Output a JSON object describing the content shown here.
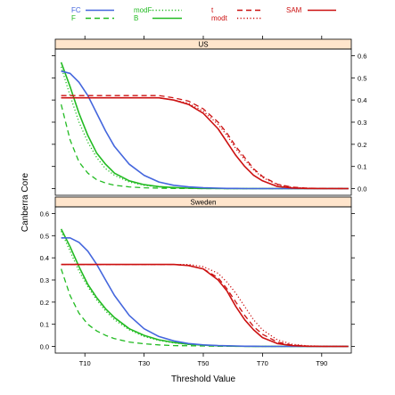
{
  "chart_data": {
    "type": "line",
    "xlabel": "Threshold Value",
    "ylabel": "Canberra Core",
    "xlim": [
      0,
      100
    ],
    "ylim": [
      -0.03,
      0.63
    ],
    "x_ticks": [
      {
        "value": 10,
        "label": "T10"
      },
      {
        "value": 30,
        "label": "T30"
      },
      {
        "value": 50,
        "label": "T50"
      },
      {
        "value": 70,
        "label": "T70"
      },
      {
        "value": 90,
        "label": "T90"
      }
    ],
    "y_ticks": [
      0.0,
      0.1,
      0.2,
      0.3,
      0.4,
      0.5,
      0.6
    ],
    "y_tick_labels": [
      "0.0",
      "0.1",
      "0.2",
      "0.3",
      "0.4",
      "0.5",
      "0.6"
    ],
    "legend_position": "top",
    "legend": [
      {
        "name": "FC",
        "color": "#4466dd",
        "dash": "solid"
      },
      {
        "name": "F",
        "color": "#22bb22",
        "dash": "dashed"
      },
      {
        "name": "modF",
        "color": "#22bb22",
        "dash": "dotted"
      },
      {
        "name": "B",
        "color": "#22bb22",
        "dash": "solid"
      },
      {
        "name": "t",
        "color": "#cc1111",
        "dash": "dashed"
      },
      {
        "name": "modt",
        "color": "#cc1111",
        "dash": "dotted"
      },
      {
        "name": "SAM",
        "color": "#cc1111",
        "dash": "solid"
      }
    ],
    "x": [
      2,
      5,
      8,
      11,
      14,
      17,
      20,
      25,
      30,
      35,
      40,
      45,
      50,
      55,
      58,
      61,
      64,
      67,
      70,
      75,
      80,
      85,
      90,
      99
    ],
    "panels": [
      {
        "strip": "US",
        "series": [
          {
            "name": "FC",
            "values": [
              0.53,
              0.52,
              0.48,
              0.42,
              0.34,
              0.26,
              0.19,
              0.11,
              0.06,
              0.03,
              0.015,
              0.008,
              0.004,
              0.002,
              0.001,
              0.001,
              0.0,
              0.0,
              0.0,
              0.0,
              0.0,
              0.0,
              0.0,
              0.0
            ]
          },
          {
            "name": "F",
            "values": [
              0.38,
              0.22,
              0.12,
              0.07,
              0.04,
              0.025,
              0.015,
              0.008,
              0.004,
              0.002,
              0.001,
              0.001,
              0.0,
              0.0,
              0.0,
              0.0,
              0.0,
              0.0,
              0.0,
              0.0,
              0.0,
              0.0,
              0.0,
              0.0
            ]
          },
          {
            "name": "modF",
            "values": [
              0.55,
              0.42,
              0.3,
              0.21,
              0.14,
              0.09,
              0.06,
              0.03,
              0.015,
              0.008,
              0.004,
              0.002,
              0.001,
              0.001,
              0.0,
              0.0,
              0.0,
              0.0,
              0.0,
              0.0,
              0.0,
              0.0,
              0.0,
              0.0
            ]
          },
          {
            "name": "B",
            "values": [
              0.57,
              0.46,
              0.34,
              0.24,
              0.16,
              0.11,
              0.07,
              0.035,
              0.018,
              0.009,
              0.005,
              0.002,
              0.001,
              0.001,
              0.0,
              0.0,
              0.0,
              0.0,
              0.0,
              0.0,
              0.0,
              0.0,
              0.0,
              0.0
            ]
          },
          {
            "name": "t",
            "values": [
              0.42,
              0.42,
              0.42,
              0.42,
              0.42,
              0.42,
              0.42,
              0.42,
              0.42,
              0.42,
              0.41,
              0.395,
              0.36,
              0.3,
              0.25,
              0.19,
              0.14,
              0.09,
              0.055,
              0.02,
              0.007,
              0.002,
              0.001,
              0.0
            ]
          },
          {
            "name": "modt",
            "values": [
              0.41,
              0.41,
              0.41,
              0.41,
              0.41,
              0.41,
              0.41,
              0.41,
              0.41,
              0.41,
              0.4,
              0.385,
              0.35,
              0.29,
              0.24,
              0.18,
              0.13,
              0.085,
              0.05,
              0.018,
              0.006,
              0.002,
              0.001,
              0.0
            ]
          },
          {
            "name": "SAM",
            "values": [
              0.41,
              0.41,
              0.41,
              0.41,
              0.41,
              0.41,
              0.41,
              0.41,
              0.41,
              0.41,
              0.4,
              0.38,
              0.34,
              0.27,
              0.21,
              0.15,
              0.1,
              0.06,
              0.035,
              0.01,
              0.003,
              0.001,
              0.0,
              0.0
            ]
          }
        ]
      },
      {
        "strip": "Sweden",
        "series": [
          {
            "name": "FC",
            "values": [
              0.49,
              0.49,
              0.47,
              0.43,
              0.37,
              0.3,
              0.23,
              0.14,
              0.08,
              0.045,
              0.025,
              0.013,
              0.007,
              0.004,
              0.003,
              0.002,
              0.001,
              0.001,
              0.0,
              0.0,
              0.0,
              0.0,
              0.0,
              0.0
            ]
          },
          {
            "name": "F",
            "values": [
              0.35,
              0.23,
              0.15,
              0.1,
              0.07,
              0.05,
              0.035,
              0.02,
              0.012,
              0.007,
              0.004,
              0.003,
              0.002,
              0.001,
              0.001,
              0.001,
              0.0,
              0.0,
              0.0,
              0.0,
              0.0,
              0.0,
              0.0,
              0.0
            ]
          },
          {
            "name": "modF",
            "values": [
              0.52,
              0.43,
              0.34,
              0.27,
              0.21,
              0.16,
              0.12,
              0.075,
              0.045,
              0.027,
              0.016,
              0.009,
              0.005,
              0.003,
              0.002,
              0.001,
              0.001,
              0.0,
              0.0,
              0.0,
              0.0,
              0.0,
              0.0,
              0.0
            ]
          },
          {
            "name": "B",
            "values": [
              0.53,
              0.45,
              0.36,
              0.28,
              0.22,
              0.17,
              0.13,
              0.08,
              0.05,
              0.03,
              0.018,
              0.01,
              0.006,
              0.003,
              0.002,
              0.001,
              0.001,
              0.0,
              0.0,
              0.0,
              0.0,
              0.0,
              0.0,
              0.0
            ]
          },
          {
            "name": "t",
            "values": [
              0.37,
              0.37,
              0.37,
              0.37,
              0.37,
              0.37,
              0.37,
              0.37,
              0.37,
              0.37,
              0.37,
              0.365,
              0.35,
              0.31,
              0.26,
              0.2,
              0.14,
              0.09,
              0.055,
              0.02,
              0.006,
              0.002,
              0.0,
              0.0
            ]
          },
          {
            "name": "modt",
            "values": [
              0.37,
              0.37,
              0.37,
              0.37,
              0.37,
              0.37,
              0.37,
              0.37,
              0.37,
              0.37,
              0.37,
              0.37,
              0.36,
              0.33,
              0.29,
              0.24,
              0.18,
              0.12,
              0.075,
              0.03,
              0.01,
              0.003,
              0.001,
              0.0
            ]
          },
          {
            "name": "SAM",
            "values": [
              0.37,
              0.37,
              0.37,
              0.37,
              0.37,
              0.37,
              0.37,
              0.37,
              0.37,
              0.37,
              0.37,
              0.365,
              0.35,
              0.3,
              0.25,
              0.18,
              0.12,
              0.075,
              0.04,
              0.013,
              0.004,
              0.001,
              0.0,
              0.0
            ]
          }
        ]
      }
    ]
  }
}
